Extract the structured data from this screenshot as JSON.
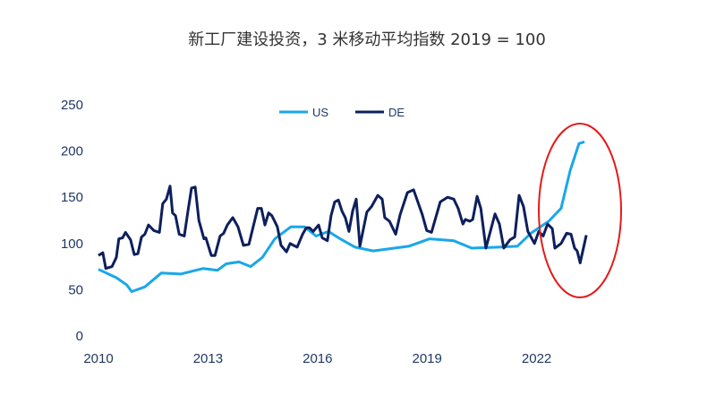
{
  "chart_data": {
    "type": "line",
    "title": "新工厂建设投资，3 米移动平均指数 2019 = 100",
    "xlabel": "",
    "ylabel": "",
    "xlim": [
      2010,
      2023.5
    ],
    "ylim": [
      0,
      250
    ],
    "x_ticks": [
      "2010",
      "2013",
      "2016",
      "2019",
      "2022"
    ],
    "y_ticks": [
      "0",
      "50",
      "100",
      "150",
      "200",
      "250"
    ],
    "grid": false,
    "legend": "top-center",
    "annotation": "red ellipse highlighting 2022-2023",
    "colors": {
      "US": "#1aa7e8",
      "DE": "#0d1f5c",
      "annotation": "#e31b1b"
    },
    "series": [
      {
        "name": "US",
        "x": [
          2010.0,
          2010.49,
          2010.78,
          2010.91,
          2011.27,
          2011.72,
          2012.25,
          2012.87,
          2013.26,
          2013.5,
          2013.85,
          2014.17,
          2014.49,
          2014.83,
          2015.27,
          2015.64,
          2015.96,
          2016.3,
          2016.62,
          2017.03,
          2017.52,
          2018.5,
          2019.07,
          2019.73,
          2020.22,
          2020.96,
          2021.47,
          2021.84,
          2022.33,
          2022.67,
          2022.92,
          2023.16,
          2023.31
        ],
        "values": [
          72,
          63,
          55,
          48,
          53,
          68,
          67,
          73,
          71,
          78,
          80,
          75,
          85,
          105,
          118,
          118,
          108,
          113,
          105,
          96,
          92,
          97,
          105,
          103,
          95,
          96,
          97,
          111,
          124,
          138,
          179,
          208,
          210
        ]
      },
      {
        "name": "DE",
        "x": [
          2010.0,
          2010.12,
          2010.2,
          2010.37,
          2010.49,
          2010.56,
          2010.66,
          2010.74,
          2010.88,
          2010.98,
          2011.08,
          2011.18,
          2011.27,
          2011.37,
          2011.52,
          2011.67,
          2011.76,
          2011.86,
          2011.96,
          2012.03,
          2012.11,
          2012.21,
          2012.35,
          2012.45,
          2012.55,
          2012.65,
          2012.75,
          2012.89,
          2012.94,
          2013.09,
          2013.19,
          2013.33,
          2013.43,
          2013.53,
          2013.68,
          2013.82,
          2013.97,
          2014.12,
          2014.36,
          2014.46,
          2014.56,
          2014.66,
          2014.75,
          2014.9,
          2015.0,
          2015.15,
          2015.25,
          2015.34,
          2015.44,
          2015.59,
          2015.69,
          2015.78,
          2015.88,
          2016.03,
          2016.13,
          2016.27,
          2016.37,
          2016.47,
          2016.57,
          2016.67,
          2016.76,
          2016.86,
          2016.96,
          2017.06,
          2017.16,
          2017.35,
          2017.48,
          2017.65,
          2017.77,
          2017.84,
          2017.97,
          2018.14,
          2018.26,
          2018.46,
          2018.63,
          2018.87,
          2018.99,
          2019.12,
          2019.36,
          2019.56,
          2019.73,
          2019.85,
          2019.98,
          2020.05,
          2020.17,
          2020.25,
          2020.37,
          2020.47,
          2020.61,
          2020.86,
          2020.98,
          2021.1,
          2021.27,
          2021.4,
          2021.52,
          2021.64,
          2021.76,
          2021.94,
          2022.06,
          2022.18,
          2022.3,
          2022.43,
          2022.5,
          2022.67,
          2022.82,
          2022.94,
          2023.04,
          2023.11,
          2023.19,
          2023.36
        ],
        "values": [
          87,
          90,
          73,
          75,
          85,
          105,
          106,
          112,
          104,
          88,
          89,
          107,
          110,
          120,
          114,
          112,
          143,
          148,
          162,
          133,
          130,
          110,
          108,
          135,
          160,
          161,
          125,
          105,
          106,
          87,
          87,
          108,
          111,
          120,
          128,
          118,
          98,
          99,
          138,
          138,
          120,
          133,
          130,
          118,
          98,
          91,
          100,
          98,
          96,
          110,
          117,
          117,
          113,
          120,
          106,
          103,
          130,
          145,
          147,
          135,
          128,
          113,
          135,
          148,
          97,
          134,
          140,
          152,
          148,
          128,
          124,
          110,
          131,
          155,
          158,
          131,
          114,
          112,
          145,
          150,
          148,
          138,
          121,
          126,
          124,
          126,
          151,
          138,
          95,
          132,
          121,
          95,
          104,
          107,
          152,
          140,
          113,
          100,
          113,
          108,
          121,
          116,
          95,
          100,
          111,
          110,
          95,
          92,
          79,
          109
        ]
      }
    ]
  },
  "logo_text": ""
}
